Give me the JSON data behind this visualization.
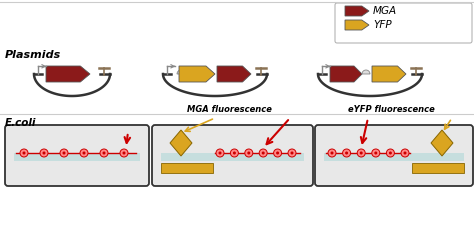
{
  "background_color": "#ffffff",
  "mga_color": "#8B1A1A",
  "yfp_color": "#DAA520",
  "red_arrow_color": "#CC0000",
  "yellow_arrow_color": "#DAA520",
  "plasmids_label": "Plasmids",
  "ecoli_label": "E.coli",
  "mga_fluor_label": "MGA fluorescence",
  "eyfp_fluor_label": "eYFP fluorescence",
  "legend_mga": "MGA",
  "legend_yfp": "YFP",
  "cell_border": "#333333",
  "cell_fill": "#e8e8e8",
  "teal_line": "#aacccc",
  "promoter_color": "#888888",
  "terminator_color": "#8B7355",
  "rbs_color": "#cccccc",
  "bead_fill": "#FF8888",
  "bead_edge": "#CC0000",
  "plasmid_line": "#333333"
}
